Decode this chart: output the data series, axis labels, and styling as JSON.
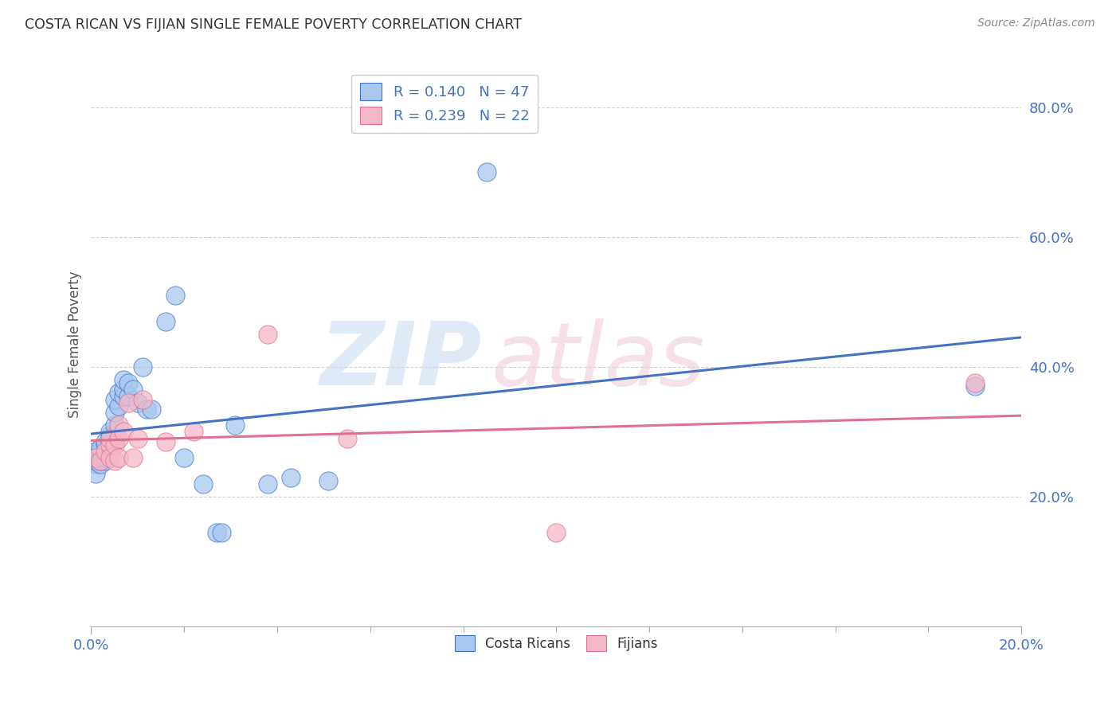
{
  "title": "COSTA RICAN VS FIJIAN SINGLE FEMALE POVERTY CORRELATION CHART",
  "source": "Source: ZipAtlas.com",
  "ylabel": "Single Female Poverty",
  "legend_cr": "R = 0.140   N = 47",
  "legend_fj": "R = 0.239   N = 22",
  "cr_color": "#a8c8f0",
  "fj_color": "#f5b8c8",
  "cr_line_color": "#4472c4",
  "fj_line_color": "#e07090",
  "axis_color": "#4472c4",
  "watermark_zip": "ZIP",
  "watermark_atlas": "atlas",
  "cr_x": [
    0.001,
    0.001,
    0.001,
    0.001,
    0.002,
    0.002,
    0.002,
    0.002,
    0.003,
    0.003,
    0.003,
    0.003,
    0.003,
    0.004,
    0.004,
    0.004,
    0.004,
    0.004,
    0.005,
    0.005,
    0.005,
    0.005,
    0.005,
    0.006,
    0.006,
    0.007,
    0.007,
    0.007,
    0.008,
    0.008,
    0.009,
    0.01,
    0.011,
    0.012,
    0.013,
    0.016,
    0.018,
    0.02,
    0.024,
    0.027,
    0.028,
    0.031,
    0.038,
    0.043,
    0.051,
    0.085,
    0.19
  ],
  "cr_y": [
    0.25,
    0.235,
    0.255,
    0.27,
    0.25,
    0.255,
    0.27,
    0.275,
    0.265,
    0.255,
    0.26,
    0.28,
    0.285,
    0.27,
    0.265,
    0.285,
    0.295,
    0.3,
    0.285,
    0.295,
    0.31,
    0.33,
    0.35,
    0.34,
    0.36,
    0.355,
    0.365,
    0.38,
    0.355,
    0.375,
    0.365,
    0.345,
    0.4,
    0.335,
    0.335,
    0.47,
    0.51,
    0.26,
    0.22,
    0.145,
    0.145,
    0.31,
    0.22,
    0.23,
    0.225,
    0.7,
    0.37
  ],
  "fj_x": [
    0.001,
    0.002,
    0.003,
    0.004,
    0.004,
    0.004,
    0.005,
    0.005,
    0.006,
    0.006,
    0.006,
    0.007,
    0.008,
    0.009,
    0.01,
    0.011,
    0.016,
    0.022,
    0.038,
    0.055,
    0.1,
    0.19
  ],
  "fj_y": [
    0.26,
    0.255,
    0.27,
    0.28,
    0.29,
    0.26,
    0.255,
    0.28,
    0.31,
    0.29,
    0.26,
    0.3,
    0.345,
    0.26,
    0.29,
    0.35,
    0.285,
    0.3,
    0.45,
    0.29,
    0.145,
    0.375
  ],
  "xlim": [
    0.0,
    0.2
  ],
  "ylim": [
    0.0,
    0.87
  ],
  "yticks": [
    0.0,
    0.2,
    0.4,
    0.6,
    0.8
  ],
  "ytick_labels": [
    "",
    "20.0%",
    "40.0%",
    "60.0%",
    "80.0%"
  ],
  "xtick_labels": [
    "0.0%",
    "20.0%"
  ],
  "background_color": "#ffffff",
  "grid_color": "#cccccc",
  "cr_intercept": 0.28,
  "cr_slope": 0.46,
  "fj_intercept": 0.275,
  "fj_slope": 0.65
}
